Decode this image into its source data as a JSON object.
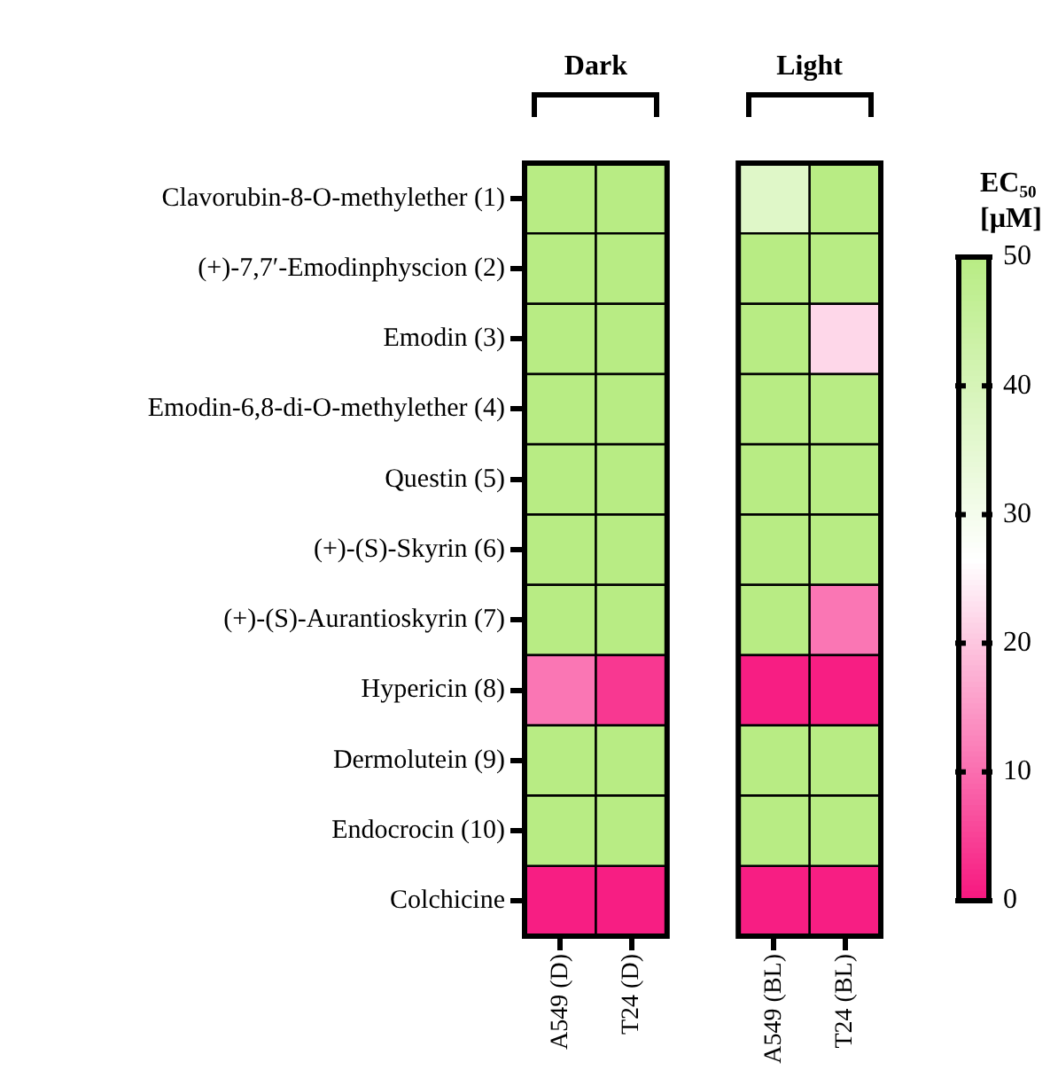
{
  "chart_data": {
    "type": "heatmap",
    "annotations": [
      "Dark",
      "Light"
    ],
    "categories": [
      "A549 (D)",
      "T24 (D)",
      null,
      "A549 (BL)",
      "T24 (BL)"
    ],
    "y_categories": [
      "Clavorubin-8-O-methylether (1)",
      "(+)-7,7′-Emodinphyscion (2)",
      "Emodin (3)",
      "Emodin-6,8-di-O-methylether (4)",
      "Questin (5)",
      "(+)-(S)-Skyrin (6)",
      "(+)-(S)-Aurantioskyrin (7)",
      "Hypericin (8)",
      "Dermolutein (9)",
      "Endocrocin (10)",
      "Colchicine"
    ],
    "cells": [
      [
        50,
        50,
        null,
        37,
        50
      ],
      [
        50,
        50,
        null,
        50,
        50
      ],
      [
        50,
        50,
        null,
        50,
        22
      ],
      [
        50,
        50,
        null,
        50,
        50
      ],
      [
        50,
        50,
        null,
        50,
        50
      ],
      [
        50,
        50,
        null,
        50,
        50
      ],
      [
        50,
        50,
        null,
        50,
        11
      ],
      [
        11,
        4,
        null,
        1,
        1
      ],
      [
        50,
        50,
        null,
        50,
        50
      ],
      [
        50,
        50,
        null,
        50,
        50
      ],
      [
        1,
        1,
        null,
        1,
        1
      ]
    ],
    "clim": [
      0,
      50
    ],
    "cticks": [
      0,
      10,
      20,
      30,
      40,
      50
    ],
    "clabel": "EC₅₀ [µM]"
  }
}
